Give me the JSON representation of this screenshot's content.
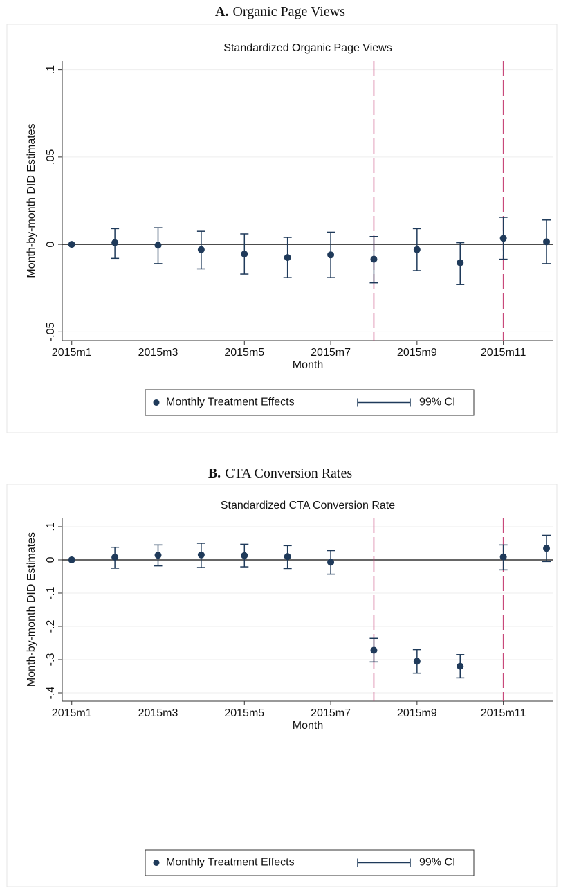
{
  "chart_data": [
    {
      "type": "errorbar",
      "panel_label": "A.",
      "panel_title": "Organic Page Views",
      "title": "Standardized Organic Page Views",
      "ylabel": "Month-by-month DID Estimates",
      "xlabel": "Month",
      "x": [
        1,
        2,
        3,
        4,
        5,
        6,
        7,
        8,
        9,
        10,
        11,
        12
      ],
      "xlim": [
        0.78,
        12.16
      ],
      "xticks": [
        {
          "value": 1,
          "label": "2015m1"
        },
        {
          "value": 3,
          "label": "2015m3"
        },
        {
          "value": 5,
          "label": "2015m5"
        },
        {
          "value": 7,
          "label": "2015m7"
        },
        {
          "value": 9,
          "label": "2015m9"
        },
        {
          "value": 11,
          "label": "2015m11"
        }
      ],
      "ylim": [
        -0.055,
        0.105
      ],
      "yticks": [
        {
          "value": -0.05,
          "label": "-.05"
        },
        0,
        {
          "value": 0.05,
          "label": ".05"
        },
        {
          "value": 0.1,
          "label": ".1"
        }
      ],
      "grid": true,
      "legend": "bottom",
      "reference_lines": {
        "x": [
          8,
          11
        ],
        "x_color": "#c8487a",
        "y": [
          0
        ],
        "y_color": "#333333"
      },
      "series": [
        {
          "name": "Monthly Treatment Effects",
          "color": "#1f3a5a",
          "values": [
            0,
            0.001,
            -0.0005,
            -0.003,
            -0.0055,
            -0.0075,
            -0.006,
            -0.0085,
            -0.003,
            -0.0105,
            0.0035,
            0.0015
          ]
        }
      ],
      "ci": {
        "name": "99% CI",
        "color": "#1f3a5a",
        "lower": [
          null,
          -0.008,
          -0.011,
          -0.014,
          -0.017,
          -0.019,
          -0.019,
          -0.022,
          -0.015,
          -0.023,
          -0.0085,
          -0.011
        ],
        "upper": [
          null,
          0.009,
          0.0095,
          0.0075,
          0.006,
          0.004,
          0.007,
          0.0045,
          0.009,
          0.001,
          0.0155,
          0.014
        ]
      }
    },
    {
      "type": "errorbar",
      "panel_label": "B.",
      "panel_title": "CTA Conversion Rates",
      "title": "Standardized CTA Conversion Rate",
      "ylabel": "Month-by-month DID Estimates",
      "xlabel": "Month",
      "x": [
        1,
        2,
        3,
        4,
        5,
        6,
        7,
        8,
        9,
        10,
        11,
        12
      ],
      "xlim": [
        0.78,
        12.16
      ],
      "xticks": [
        {
          "value": 1,
          "label": "2015m1"
        },
        {
          "value": 3,
          "label": "2015m3"
        },
        {
          "value": 5,
          "label": "2015m5"
        },
        {
          "value": 7,
          "label": "2015m7"
        },
        {
          "value": 9,
          "label": "2015m9"
        },
        {
          "value": 11,
          "label": "2015m11"
        }
      ],
      "ylim": [
        -0.425,
        0.127
      ],
      "yticks": [
        {
          "value": -0.4,
          "label": "-.4"
        },
        {
          "value": -0.3,
          "label": "-.3"
        },
        {
          "value": -0.2,
          "label": "-.2"
        },
        {
          "value": -0.1,
          "label": "-.1"
        },
        0,
        {
          "value": 0.1,
          "label": ".1"
        }
      ],
      "grid": true,
      "legend": "bottom",
      "reference_lines": {
        "x": [
          8,
          11
        ],
        "x_color": "#c8487a",
        "y": [
          0
        ],
        "y_color": "#333333"
      },
      "series": [
        {
          "name": "Monthly Treatment Effects",
          "color": "#1f3a5a",
          "values": [
            0,
            0.008,
            0.014,
            0.015,
            0.013,
            0.01,
            -0.007,
            -0.272,
            -0.305,
            -0.32,
            0.009,
            0.035
          ]
        }
      ],
      "ci": {
        "name": "99% CI",
        "color": "#1f3a5a",
        "lower": [
          null,
          -0.025,
          -0.018,
          -0.023,
          -0.021,
          -0.026,
          -0.043,
          -0.307,
          -0.341,
          -0.355,
          -0.03,
          -0.005
        ],
        "upper": [
          null,
          0.038,
          0.045,
          0.05,
          0.047,
          0.043,
          0.028,
          -0.236,
          -0.27,
          -0.285,
          0.045,
          0.074
        ]
      }
    }
  ]
}
